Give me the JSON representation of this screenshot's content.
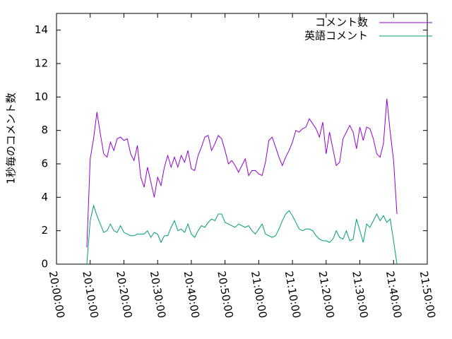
{
  "chart_data": {
    "type": "line",
    "ylabel": "1秒毎のコメント数",
    "x": [
      "20:09:00",
      "20:10:00",
      "20:11:00",
      "20:12:00",
      "20:13:00",
      "20:14:00",
      "20:15:00",
      "20:16:00",
      "20:17:00",
      "20:18:00",
      "20:19:00",
      "20:20:00",
      "20:21:00",
      "20:22:00",
      "20:23:00",
      "20:24:00",
      "20:25:00",
      "20:26:00",
      "20:27:00",
      "20:28:00",
      "20:29:00",
      "20:30:00",
      "20:31:00",
      "20:32:00",
      "20:33:00",
      "20:34:00",
      "20:35:00",
      "20:36:00",
      "20:37:00",
      "20:38:00",
      "20:39:00",
      "20:40:00",
      "20:41:00",
      "20:42:00",
      "20:43:00",
      "20:44:00",
      "20:45:00",
      "20:46:00",
      "20:47:00",
      "20:48:00",
      "20:49:00",
      "20:50:00",
      "20:51:00",
      "20:52:00",
      "20:53:00",
      "20:54:00",
      "20:55:00",
      "20:56:00",
      "20:57:00",
      "20:58:00",
      "20:59:00",
      "21:00:00",
      "21:01:00",
      "21:02:00",
      "21:03:00",
      "21:04:00",
      "21:05:00",
      "21:06:00",
      "21:07:00",
      "21:08:00",
      "21:09:00",
      "21:10:00",
      "21:11:00",
      "21:12:00",
      "21:13:00",
      "21:14:00",
      "21:15:00",
      "21:16:00",
      "21:17:00",
      "21:18:00",
      "21:19:00",
      "21:20:00",
      "21:21:00",
      "21:22:00",
      "21:23:00",
      "21:24:00",
      "21:25:00",
      "21:26:00",
      "21:27:00",
      "21:28:00",
      "21:29:00",
      "21:30:00",
      "21:31:00",
      "21:32:00",
      "21:33:00",
      "21:34:00",
      "21:35:00",
      "21:36:00",
      "21:37:00",
      "21:38:00",
      "21:39:00",
      "21:40:00",
      "21:41:00"
    ],
    "series": [
      {
        "name": "コメント数",
        "color": "#9400d3",
        "values": [
          1.0,
          6.3,
          7.5,
          9.1,
          7.8,
          6.6,
          6.4,
          7.3,
          6.8,
          7.5,
          7.6,
          7.4,
          7.5,
          6.6,
          6.2,
          7.1,
          5.2,
          4.6,
          5.8,
          4.9,
          4.0,
          5.2,
          4.7,
          5.8,
          6.5,
          5.8,
          6.4,
          5.8,
          6.5,
          6.1,
          6.8,
          5.7,
          5.6,
          6.5,
          7.0,
          7.6,
          7.7,
          6.8,
          7.2,
          7.7,
          7.5,
          6.8,
          6.0,
          6.2,
          5.9,
          5.5,
          5.9,
          6.3,
          5.3,
          5.6,
          5.6,
          5.4,
          5.3,
          6.1,
          7.4,
          7.6,
          7.0,
          6.4,
          5.9,
          6.4,
          6.8,
          7.3,
          8.0,
          7.9,
          8.1,
          8.2,
          8.7,
          8.4,
          8.1,
          7.6,
          8.5,
          6.6,
          7.9,
          6.9,
          5.9,
          6.1,
          7.5,
          7.9,
          8.3,
          7.9,
          6.9,
          8.2,
          7.4,
          8.2,
          8.1,
          7.5,
          6.6,
          6.4,
          7.2,
          9.9,
          7.9,
          6.2,
          3.0
        ]
      },
      {
        "name": "英語コメント",
        "color": "#009e73",
        "values": [
          0.0,
          2.6,
          3.5,
          2.9,
          2.4,
          1.9,
          2.0,
          2.4,
          2.0,
          1.9,
          2.3,
          1.9,
          1.8,
          1.7,
          1.7,
          1.8,
          1.8,
          1.8,
          2.0,
          1.6,
          1.9,
          1.8,
          1.3,
          1.7,
          1.7,
          2.2,
          2.6,
          2.0,
          2.1,
          1.9,
          2.4,
          1.8,
          1.6,
          2.0,
          2.3,
          2.2,
          2.5,
          2.7,
          2.6,
          3.0,
          3.0,
          2.5,
          2.4,
          2.3,
          2.2,
          2.4,
          2.3,
          2.2,
          2.3,
          2.0,
          1.8,
          2.1,
          2.4,
          1.8,
          1.7,
          1.6,
          1.7,
          2.1,
          2.6,
          3.0,
          3.2,
          2.9,
          2.5,
          2.1,
          2.0,
          2.1,
          2.1,
          2.0,
          1.7,
          1.5,
          1.4,
          1.4,
          1.3,
          1.5,
          2.0,
          1.6,
          1.5,
          2.0,
          1.4,
          1.5,
          2.7,
          2.0,
          1.3,
          2.4,
          2.2,
          2.6,
          3.0,
          2.6,
          2.9,
          2.5,
          2.7,
          1.4,
          0.0
        ]
      }
    ],
    "xlim": [
      "20:00:00",
      "21:50:00"
    ],
    "xticks": [
      "20:00:00",
      "20:10:00",
      "20:20:00",
      "20:30:00",
      "20:40:00",
      "20:50:00",
      "21:00:00",
      "21:10:00",
      "21:20:00",
      "21:30:00",
      "21:40:00",
      "21:50:00"
    ],
    "ylim": [
      0,
      15
    ],
    "yticks": [
      0,
      2,
      4,
      6,
      8,
      10,
      12,
      14
    ],
    "legend": "top-right"
  }
}
